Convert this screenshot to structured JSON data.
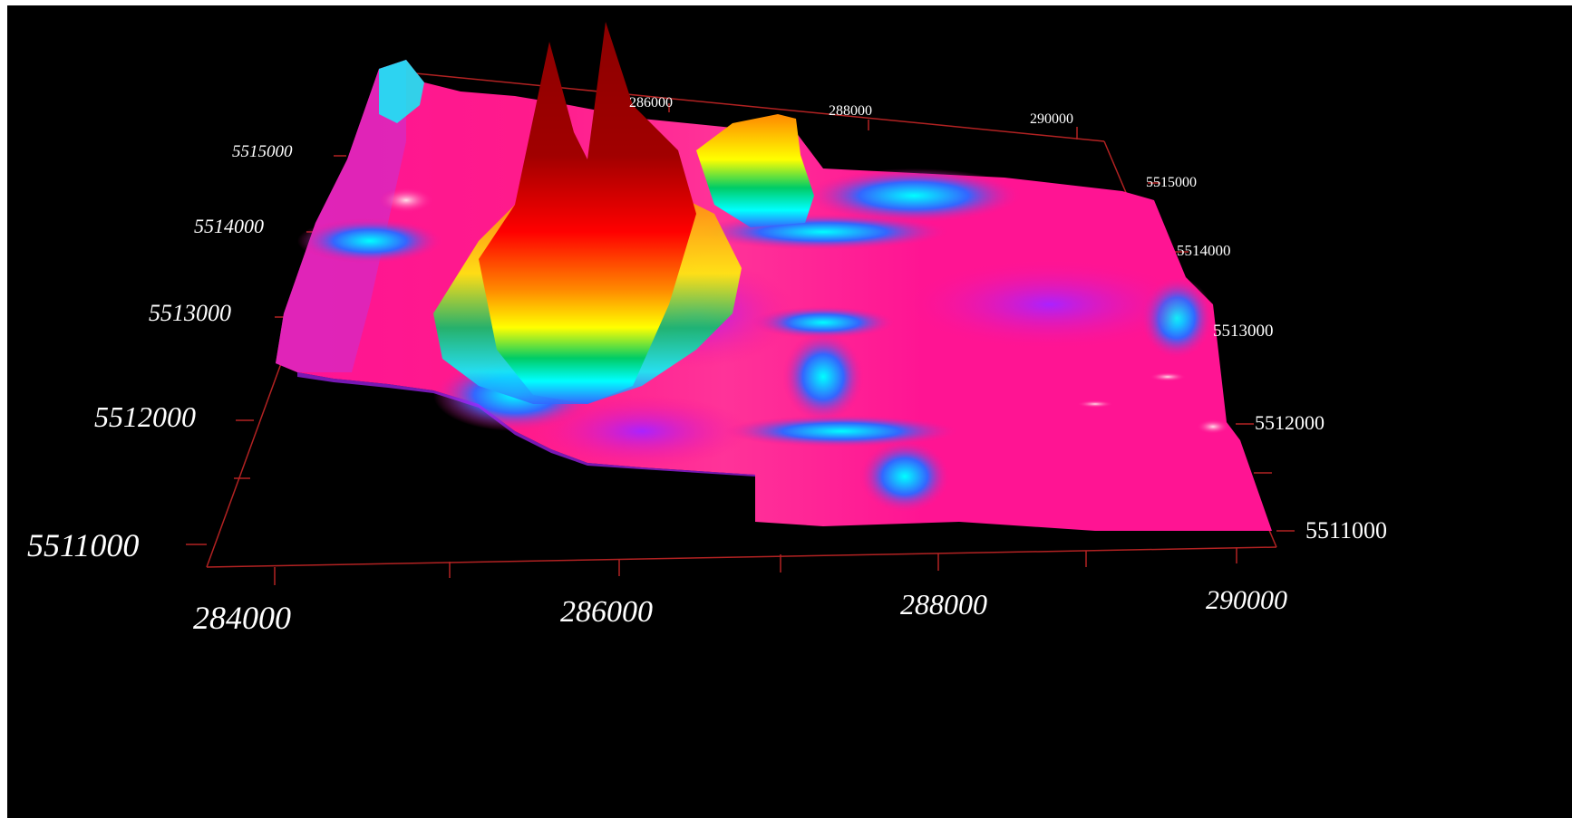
{
  "chart_data": {
    "type": "surface-3d",
    "title": "",
    "xlabel": "",
    "ylabel": "",
    "zlabel": "",
    "x_ticks": [
      "284000",
      "286000",
      "288000",
      "290000"
    ],
    "y_ticks": [
      "5511000",
      "5512000",
      "5513000",
      "5514000",
      "5515000"
    ],
    "far_x_ticks": [
      "286000",
      "288000",
      "290000"
    ],
    "right_y_ticks": [
      "5511000",
      "5512000",
      "5513000",
      "5514000",
      "5515000"
    ],
    "left_y_ticks": [
      "5511000",
      "5512000",
      "5513000",
      "5514000",
      "5515000"
    ],
    "xlim": [
      283800,
      290200
    ],
    "ylim": [
      5510800,
      5515800
    ],
    "background_color": "#000000",
    "axis_color": "#b22222",
    "grid": false,
    "legend": "none",
    "colormap": [
      "#ff1493",
      "#cc33ff",
      "#3366ff",
      "#00ffff",
      "#00cc66",
      "#ffff00",
      "#ff8800",
      "#ff0000",
      "#8b0000"
    ],
    "peaks": [
      {
        "x": 285600,
        "y": 5514800,
        "relative_height": 1.0,
        "color": "#8b0000"
      },
      {
        "x": 285900,
        "y": 5515200,
        "relative_height": 1.0,
        "color": "#8b0000"
      },
      {
        "x": 286700,
        "y": 5515100,
        "relative_height": 0.35,
        "color": "#ffa500"
      }
    ]
  }
}
